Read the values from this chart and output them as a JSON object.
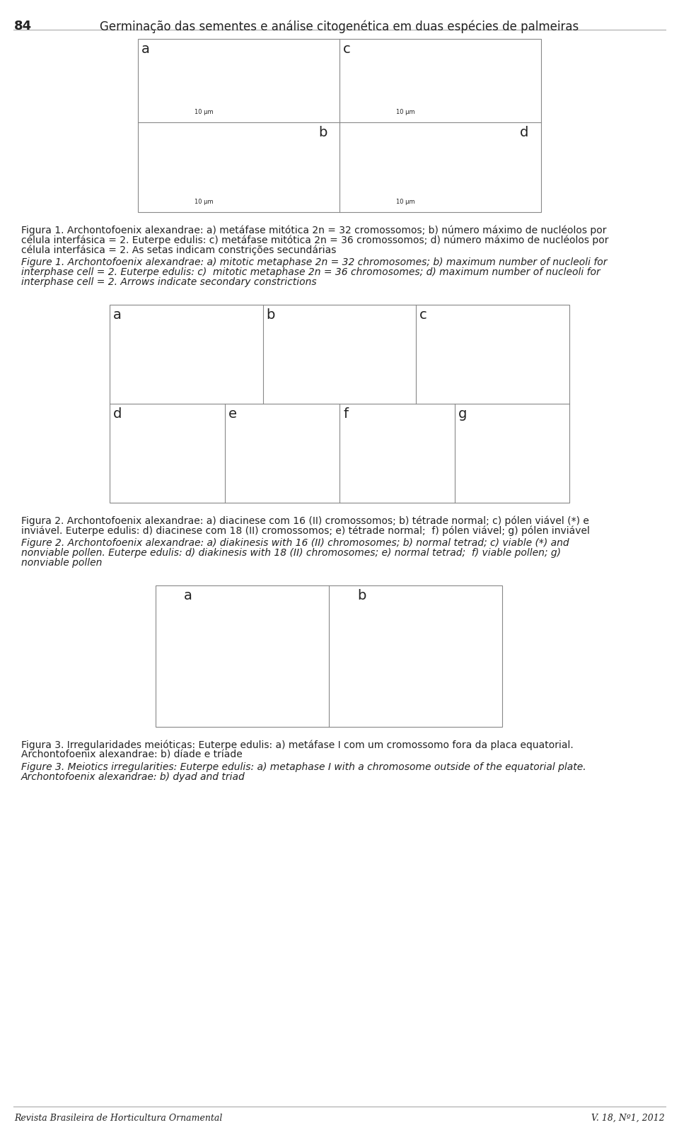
{
  "page_number": "84",
  "header_title": "Germinação das sementes e análise citogenética em duas espécies de palmeiras",
  "background_color": "#ffffff",
  "fig1_caption_pt": [
    "Figura 1. Archontofoenix alexandrae: a) metáfase mitótica 2n = 32 cromossomos; b) número máximo de nucléolos por",
    "célula interfásica = 2. Euterpe edulis: c) metáfase mitótica 2n = 36 cromossomos; d) número máximo de nucléolos por",
    "célula interfásica = 2. As setas indicam constrições secundárias"
  ],
  "fig1_caption_en": [
    "Figure 1. Archontofoenix alexandrae: a) mitotic metaphase 2n = 32 chromosomes; b) maximum number of nucleoli for",
    "interphase cell = 2. Euterpe edulis: c)  mitotic metaphase 2n = 36 chromosomes; d) maximum number of nucleoli for",
    "interphase cell = 2. Arrows indicate secondary constrictions"
  ],
  "fig2_caption_pt": [
    "Figura 2. Archontofoenix alexandrae: a) diacinese com 16 (II) cromossomos; b) tétrade normal; c) pólen viável (*) e",
    "inviável. Euterpe edulis: d) diacinese com 18 (II) cromossomos; e) tétrade normal;  f) pólen viável; g) pólen inviável"
  ],
  "fig2_caption_en": [
    "Figure 2. Archontofoenix alexandrae: a) diakinesis with 16 (II) chromosomes; b) normal tetrad; c) viable (*) and",
    "nonviable pollen. Euterpe edulis: d) diakinesis with 18 (II) chromosomes; e) normal tetrad;  f) viable pollen; g)",
    "nonviable pollen"
  ],
  "fig3_caption_pt": [
    "Figura 3. Irregularidades meióticas: Euterpe edulis: a) metáfase I com um cromossomo fora da placa equatorial.",
    "Archontofoenix alexandrae: b) díade e tríade"
  ],
  "fig3_caption_en": [
    "Figure 3. Meiotics irregularities: Euterpe edulis: a) metaphase I with a chromosome outside of the equatorial plate.",
    "Archontofoenix alexandrae: b) dyad and triad"
  ],
  "footer_left": "Revista Brasileira de Horticultura Ornamental",
  "footer_right": "V. 18, Nº1, 2012",
  "text_color": "#222222",
  "gray_color": "#555555"
}
